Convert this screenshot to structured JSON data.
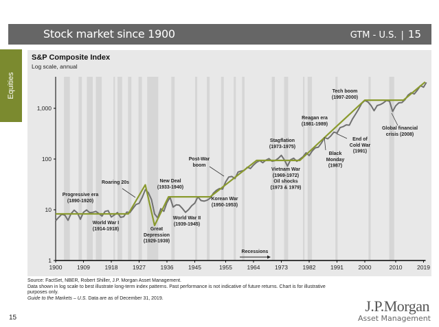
{
  "header": {
    "title": "Stock market since 1900",
    "deck": "GTM - U.S.",
    "separator": "|",
    "page": "15"
  },
  "side_tab": {
    "label": "Equities"
  },
  "colors": {
    "header_bg": "#666666",
    "chevron": "#6b3f2a",
    "side_tab": "#7b8a2f",
    "panel_bg": "#e8e8e8",
    "index_line": "#707070",
    "trend_line": "#8a9a2e",
    "recession_band": "#d6d6d6"
  },
  "chart_data": {
    "type": "line",
    "title": "S&P Composite Index",
    "subtitle": "Log scale, annual",
    "xlabel": "",
    "ylabel": "",
    "yscale": "log",
    "xlim": [
      1900,
      2019
    ],
    "ylim": [
      1,
      4200
    ],
    "x_ticks": [
      "1900",
      "1909",
      "1918",
      "1927",
      "1936",
      "1945",
      "1955",
      "1964",
      "1973",
      "1982",
      "1991",
      "2000",
      "2010",
      "2019"
    ],
    "y_ticks": [
      {
        "value": 1,
        "label": "1"
      },
      {
        "value": 10,
        "label": "10"
      },
      {
        "value": 100,
        "label": "100"
      },
      {
        "value": 1000,
        "label": "1,000"
      }
    ],
    "grid": false,
    "series": [
      {
        "x": [
          1900,
          1901,
          1902,
          1903,
          1904,
          1905,
          1906,
          1907,
          1908,
          1909,
          1910,
          1911,
          1912,
          1913,
          1914,
          1915,
          1916,
          1917,
          1918,
          1919,
          1920,
          1921,
          1922,
          1923,
          1924,
          1925,
          1926,
          1927,
          1928,
          1929,
          1930,
          1931,
          1932,
          1933,
          1934,
          1935,
          1936,
          1937,
          1938,
          1939,
          1940,
          1941,
          1942,
          1943,
          1944,
          1945,
          1946,
          1947,
          1948,
          1949,
          1950,
          1951,
          1952,
          1953,
          1954,
          1955,
          1956,
          1957,
          1958,
          1959,
          1960,
          1961,
          1962,
          1963,
          1964,
          1965,
          1966,
          1967,
          1968,
          1969,
          1970,
          1971,
          1972,
          1973,
          1974,
          1975,
          1976,
          1977,
          1978,
          1979,
          1980,
          1981,
          1982,
          1983,
          1984,
          1985,
          1986,
          1987,
          1988,
          1989,
          1990,
          1991,
          1992,
          1993,
          1994,
          1995,
          1996,
          1997,
          1998,
          1999,
          2000,
          2001,
          2002,
          2003,
          2004,
          2005,
          2006,
          2007,
          2008,
          2009,
          2010,
          2011,
          2012,
          2013,
          2014,
          2015,
          2016,
          2017,
          2018,
          2019,
          2019.9
        ],
        "y": [
          6.1,
          7.1,
          8.2,
          7.8,
          6.2,
          8.4,
          9.8,
          8.7,
          6.5,
          8.9,
          9.9,
          8.8,
          8.9,
          9.3,
          8.4,
          7.5,
          9.3,
          9.6,
          7.2,
          7.9,
          8.8,
          7.1,
          7.3,
          9.0,
          8.8,
          10.6,
          12.7,
          13.4,
          17.5,
          24.9,
          21.7,
          15.9,
          8.3,
          6.9,
          10.5,
          9.3,
          13.8,
          17.6,
          11.3,
          12.5,
          12.3,
          10.6,
          8.9,
          10.1,
          12.0,
          13.5,
          18.0,
          15.2,
          14.8,
          15.4,
          16.9,
          21.2,
          24.2,
          26.2,
          25.5,
          35.6,
          44.2,
          45.4,
          41.1,
          55.6,
          58.0,
          59.7,
          69.1,
          65.1,
          76.4,
          86.1,
          93.3,
          84.5,
          95.0,
          102.0,
          90.3,
          93.5,
          103.3,
          118.4,
          96.1,
          72.6,
          96.9,
          103.8,
          90.3,
          99.7,
          110.9,
          133.0,
          117.3,
          144.3,
          166.4,
          171.6,
          208.2,
          264.5,
          250.5,
          285.4,
          340.0,
          325.5,
          416.1,
          435.2,
          473.0,
          465.3,
          614.4,
          766.2,
          963.4,
          1248.8,
          1425.6,
          1335.6,
          1140.2,
          895.8,
          1132.5,
          1181.4,
          1278.7,
          1424.2,
          1378.8,
          865.6,
          1123.6,
          1282.6,
          1300.6,
          1480.4,
          1822.4,
          2028.2,
          1918.6,
          2275.1,
          2789.8,
          2607.4,
          3230.8
        ]
      },
      {
        "x": [
          1900,
          1923.5,
          1929,
          1932,
          1936.5,
          1950,
          1965,
          1979,
          2000,
          2012.5,
          2019.5
        ],
        "y": [
          8.3,
          8.3,
          31,
          4.9,
          18,
          18,
          94,
          94,
          1450,
          1450,
          3300
        ]
      }
    ],
    "recessions": [
      [
        1902.7,
        1904.6
      ],
      [
        1907.4,
        1908.5
      ],
      [
        1910.1,
        1912.0
      ],
      [
        1913.0,
        1914.9
      ],
      [
        1918.7,
        1919.2
      ],
      [
        1920.0,
        1921.5
      ],
      [
        1923.4,
        1924.5
      ],
      [
        1926.8,
        1927.9
      ],
      [
        1929.6,
        1933.2
      ],
      [
        1937.4,
        1938.5
      ],
      [
        1945.1,
        1945.8
      ],
      [
        1948.9,
        1949.8
      ],
      [
        1953.5,
        1954.4
      ],
      [
        1957.6,
        1958.3
      ],
      [
        1960.3,
        1961.1
      ],
      [
        1969.9,
        1970.9
      ],
      [
        1973.9,
        1975.2
      ],
      [
        1980.0,
        1980.5
      ],
      [
        1981.5,
        1982.9
      ],
      [
        1990.5,
        1991.2
      ],
      [
        2001.2,
        2001.9
      ],
      [
        2007.9,
        2009.5
      ]
    ],
    "recession_label": "Recessions",
    "annotations": [
      {
        "lines": [
          "Progressive era",
          "(1890-1920)"
        ]
      },
      {
        "lines": [
          "Roaring 20s"
        ]
      },
      {
        "lines": [
          "World War I",
          "(1914-1918)"
        ]
      },
      {
        "lines": [
          "Great",
          "Depression",
          "(1929-1939)"
        ]
      },
      {
        "lines": [
          "New Deal",
          "(1933-1940)"
        ]
      },
      {
        "lines": [
          "World War II",
          "(1939-1945)"
        ]
      },
      {
        "lines": [
          "Post-War",
          "boom"
        ]
      },
      {
        "lines": [
          "Korean War",
          "(1950-1953)"
        ]
      },
      {
        "lines": [
          "Stagflation",
          "(1973-1975)"
        ]
      },
      {
        "lines": [
          "Vietnam War",
          "(1969-1972)",
          "Oil shocks",
          "(1973 & 1979)"
        ]
      },
      {
        "lines": [
          "Reagan era",
          "(1981-1989)"
        ]
      },
      {
        "lines": [
          "Black",
          "Monday",
          "(1987)"
        ]
      },
      {
        "lines": [
          "End of",
          "Cold War",
          "(1991)"
        ]
      },
      {
        "lines": [
          "Tech boom",
          "(1997-2000)"
        ]
      },
      {
        "lines": [
          "Global financial",
          "crisis (2008)"
        ]
      }
    ]
  },
  "footer": {
    "source": "Source: FactSet, NBER, Robert Shiller, J.P. Morgan Asset Management.",
    "disclaimer": "Data shown in log scale to best illustrate long-term index patterns. Past performance is not indicative of future returns. Chart is for illustrative purposes only.",
    "guide": "Guide to the Markets – U.S.",
    "asof": " Data are as of December 31, 2019."
  },
  "logo": {
    "name": "J.P.Morgan",
    "sub": "Asset Management"
  },
  "page_number": "15"
}
